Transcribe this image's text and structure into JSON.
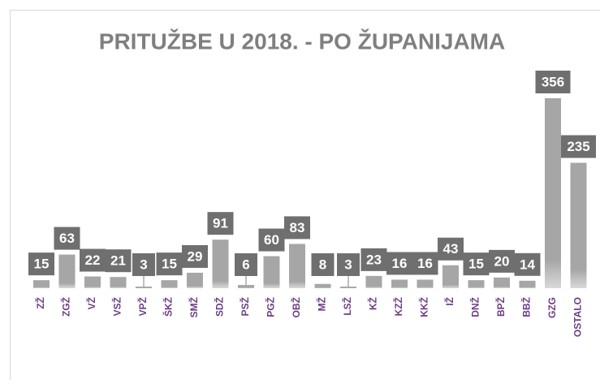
{
  "chart_data": {
    "type": "bar",
    "title": "PRITUŽBE U 2018. - PO ŽUPANIJAMA",
    "categories": [
      "ZŽ",
      "ZGŽ",
      "VŽ",
      "VSŽ",
      "VPŽ",
      "ŠKŽ",
      "SMŽ",
      "SDŽ",
      "PSŽ",
      "PGŽ",
      "OBŽ",
      "MŽ",
      "LSŽ",
      "KŽ",
      "KZŽ",
      "KKŽ",
      "IŽ",
      "DNŽ",
      "BPŽ",
      "BBŽ",
      "GZG",
      "OSTALO"
    ],
    "values": [
      15,
      63,
      22,
      21,
      3,
      15,
      29,
      91,
      6,
      60,
      83,
      8,
      3,
      23,
      16,
      16,
      43,
      15,
      20,
      14,
      356,
      235
    ],
    "color": "#a6a6a6"
  }
}
